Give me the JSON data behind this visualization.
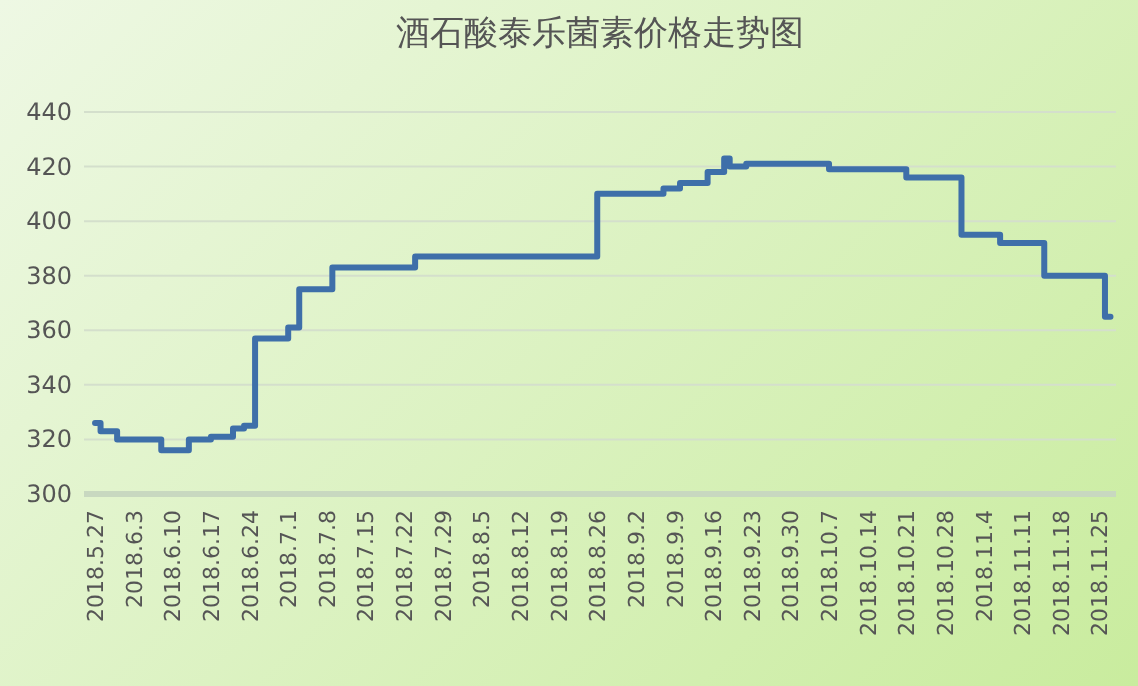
{
  "chart_data": {
    "type": "step",
    "title": "酒石酸泰乐菌素价格走势图",
    "x": [
      "2018-05-27",
      "2018-05-28",
      "2018-05-31",
      "2018-06-08",
      "2018-06-13",
      "2018-06-17",
      "2018-06-21",
      "2018-06-23",
      "2018-06-25",
      "2018-07-01",
      "2018-07-03",
      "2018-07-09",
      "2018-07-24",
      "2018-08-26",
      "2018-09-07",
      "2018-09-10",
      "2018-09-15",
      "2018-09-18",
      "2018-09-19",
      "2018-09-22",
      "2018-10-07",
      "2018-10-21",
      "2018-10-31",
      "2018-11-07",
      "2018-11-15",
      "2018-11-26",
      "2018-11-27"
    ],
    "values": [
      326,
      323,
      320,
      316,
      320,
      321,
      324,
      325,
      357,
      361,
      375,
      383,
      387,
      410,
      412,
      414,
      418,
      423,
      420,
      421,
      419,
      416,
      395,
      392,
      380,
      365,
      365
    ],
    "color": "#3e6fa9",
    "xlim": [
      "2018-05-25",
      "2018-11-28"
    ],
    "ylim": [
      300,
      440
    ],
    "yticks": [
      300,
      320,
      340,
      360,
      380,
      400,
      420,
      440
    ],
    "xticks": [
      {
        "value": "2018-05-27",
        "label": "2018.5.27"
      },
      {
        "value": "2018-06-03",
        "label": "2018.6.3"
      },
      {
        "value": "2018-06-10",
        "label": "2018.6.10"
      },
      {
        "value": "2018-06-17",
        "label": "2018.6.17"
      },
      {
        "value": "2018-06-24",
        "label": "2018.6.24"
      },
      {
        "value": "2018-07-01",
        "label": "2018.7.1"
      },
      {
        "value": "2018-07-08",
        "label": "2018.7.8"
      },
      {
        "value": "2018-07-15",
        "label": "2018.7.15"
      },
      {
        "value": "2018-07-22",
        "label": "2018.7.22"
      },
      {
        "value": "2018-07-29",
        "label": "2018.7.29"
      },
      {
        "value": "2018-08-05",
        "label": "2018.8.5"
      },
      {
        "value": "2018-08-12",
        "label": "2018.8.12"
      },
      {
        "value": "2018-08-19",
        "label": "2018.8.19"
      },
      {
        "value": "2018-08-26",
        "label": "2018.8.26"
      },
      {
        "value": "2018-09-02",
        "label": "2018.9.2"
      },
      {
        "value": "2018-09-09",
        "label": "2018.9.9"
      },
      {
        "value": "2018-09-16",
        "label": "2018.9.16"
      },
      {
        "value": "2018-09-23",
        "label": "2018.9.23"
      },
      {
        "value": "2018-09-30",
        "label": "2018.9.30"
      },
      {
        "value": "2018-10-07",
        "label": "2018.10.7"
      },
      {
        "value": "2018-10-14",
        "label": "2018.10.14"
      },
      {
        "value": "2018-10-21",
        "label": "2018.10.21"
      },
      {
        "value": "2018-10-28",
        "label": "2018.10.28"
      },
      {
        "value": "2018-11-04",
        "label": "2018.11.4"
      },
      {
        "value": "2018-11-11",
        "label": "2018.11.11"
      },
      {
        "value": "2018-11-18",
        "label": "2018.11.18"
      },
      {
        "value": "2018-11-25",
        "label": "2018.11.25"
      }
    ],
    "grid": "y"
  }
}
